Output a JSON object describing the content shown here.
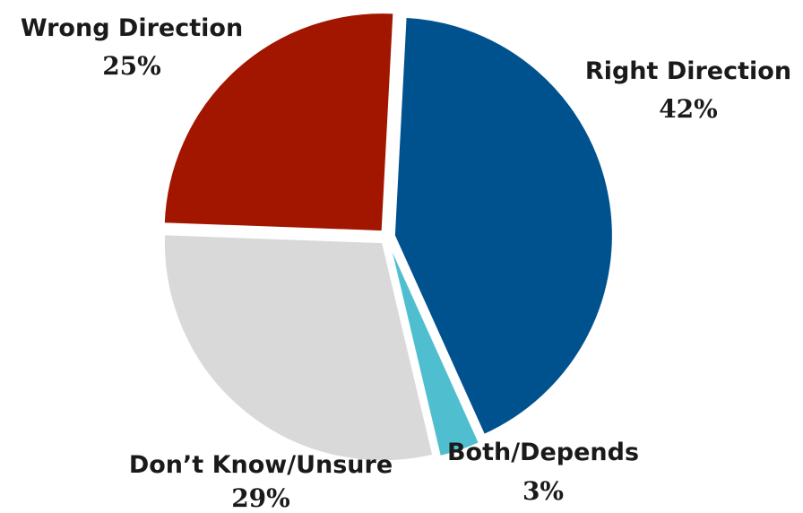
{
  "chart_data": {
    "type": "pie",
    "title": "",
    "slices": [
      {
        "label": "Right Direction",
        "value": 42,
        "display": "42%",
        "color": "#00528F"
      },
      {
        "label": "Both/Depends",
        "value": 3,
        "display": "3%",
        "color": "#4FBFCF"
      },
      {
        "label": "Don’t Know/Unsure",
        "value": 29,
        "display": "29%",
        "color": "#D9D9D9"
      },
      {
        "label": "Wrong Direction",
        "value": 25,
        "display": "25%",
        "color": "#A21600"
      }
    ],
    "legend": "none",
    "exploded": true
  }
}
